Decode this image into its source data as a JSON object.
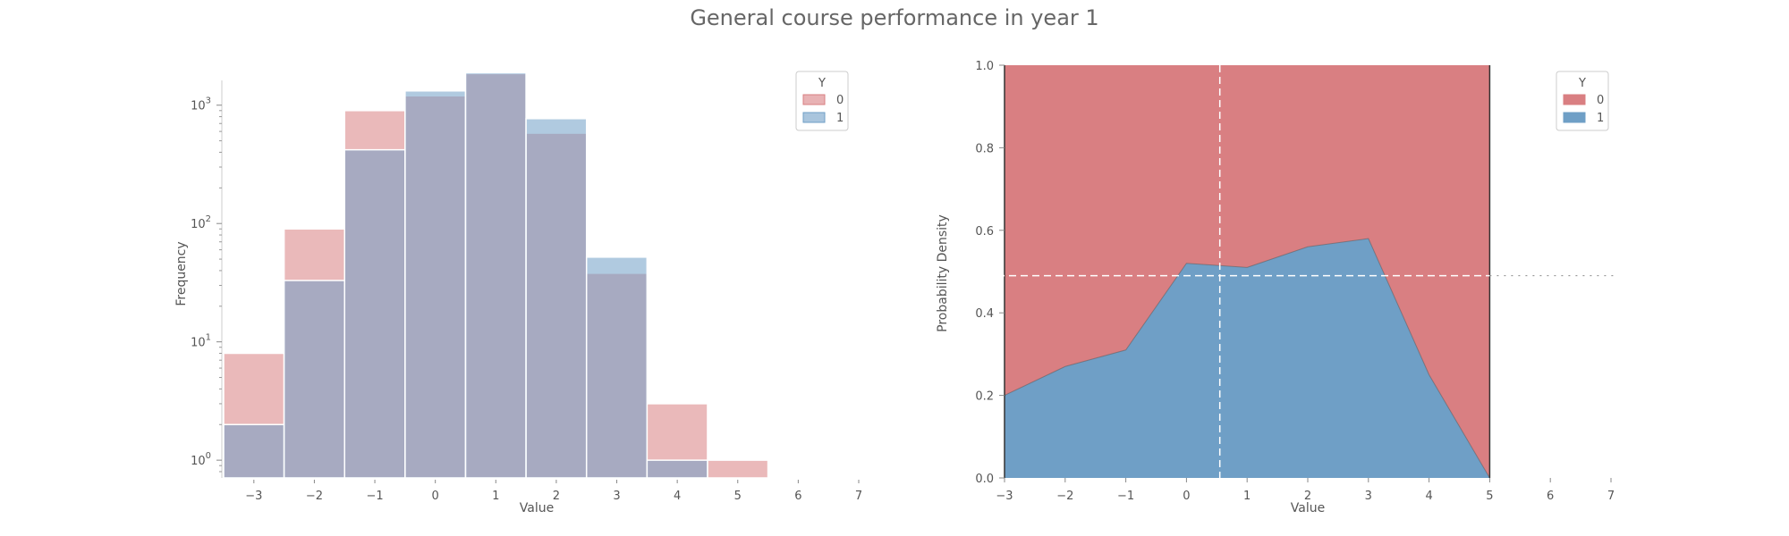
{
  "figure": {
    "title": "General course performance in year 1"
  },
  "chart_data": [
    {
      "type": "histogram",
      "xlabel": "Value",
      "ylabel": "Frequency",
      "yscale": "log",
      "xlim": [
        -3.5,
        7
      ],
      "ylim_log10": [
        -0.15,
        3.3
      ],
      "x_ticks": [
        {
          "value": -3,
          "label": "−3"
        },
        {
          "value": -2,
          "label": "−2"
        },
        {
          "value": -1,
          "label": "−1"
        },
        {
          "value": 0,
          "label": "0"
        },
        {
          "value": 1,
          "label": "1"
        },
        {
          "value": 2,
          "label": "2"
        },
        {
          "value": 3,
          "label": "3"
        },
        {
          "value": 4,
          "label": "4"
        },
        {
          "value": 5,
          "label": "5"
        },
        {
          "value": 6,
          "label": "6"
        },
        {
          "value": 7,
          "label": "7"
        }
      ],
      "y_ticks": [
        {
          "exp": 0,
          "label": "10",
          "sup": "0"
        },
        {
          "exp": 1,
          "label": "10",
          "sup": "1"
        },
        {
          "exp": 2,
          "label": "10",
          "sup": "2"
        },
        {
          "exp": 3,
          "label": "10",
          "sup": "3"
        }
      ],
      "bins": [
        -3.5,
        -2.5,
        -1.5,
        -0.5,
        0.5,
        1.5,
        2.5,
        3.5,
        4.5,
        5.5
      ],
      "series": [
        {
          "name": "0",
          "color": "#d97f82",
          "counts": [
            8,
            90,
            900,
            1200,
            1850,
            580,
            38,
            3,
            1
          ]
        },
        {
          "name": "1",
          "color": "#6f9fc6",
          "counts": [
            2,
            33,
            420,
            1320,
            1880,
            770,
            52,
            1,
            0
          ]
        }
      ],
      "legend": {
        "title": "Y",
        "position": "top-right"
      },
      "grid": false
    },
    {
      "type": "area",
      "stacked": true,
      "normalized": true,
      "xlabel": "Value",
      "ylabel": "Probability Density",
      "xlim": [
        -3,
        7
      ],
      "ylim": [
        0,
        1
      ],
      "x_ticks": [
        {
          "value": -3,
          "label": "−3"
        },
        {
          "value": -2,
          "label": "−2"
        },
        {
          "value": -1,
          "label": "−1"
        },
        {
          "value": 0,
          "label": "0"
        },
        {
          "value": 1,
          "label": "1"
        },
        {
          "value": 2,
          "label": "2"
        },
        {
          "value": 3,
          "label": "3"
        },
        {
          "value": 4,
          "label": "4"
        },
        {
          "value": 5,
          "label": "5"
        },
        {
          "value": 6,
          "label": "6"
        },
        {
          "value": 7,
          "label": "7"
        }
      ],
      "y_ticks": [
        {
          "value": 0.0,
          "label": "0.0"
        },
        {
          "value": 0.2,
          "label": "0.2"
        },
        {
          "value": 0.4,
          "label": "0.4"
        },
        {
          "value": 0.6,
          "label": "0.6"
        },
        {
          "value": 0.8,
          "label": "0.8"
        },
        {
          "value": 1.0,
          "label": "1.0"
        }
      ],
      "x": [
        -3,
        -2,
        -1,
        0,
        1,
        2,
        3,
        4,
        5
      ],
      "series": [
        {
          "name": "1",
          "color": "#6f9fc6",
          "values": [
            0.2,
            0.27,
            0.31,
            0.52,
            0.51,
            0.56,
            0.58,
            0.25,
            0.0
          ]
        },
        {
          "name": "0",
          "color": "#d97f82",
          "values": [
            0.8,
            0.73,
            0.69,
            0.48,
            0.49,
            0.44,
            0.42,
            0.75,
            1.0
          ]
        }
      ],
      "reference_lines": {
        "vertical_x": 0.55,
        "horizontal_y": 0.49
      },
      "legend": {
        "title": "Y",
        "position": "top-right"
      },
      "grid": false
    }
  ]
}
